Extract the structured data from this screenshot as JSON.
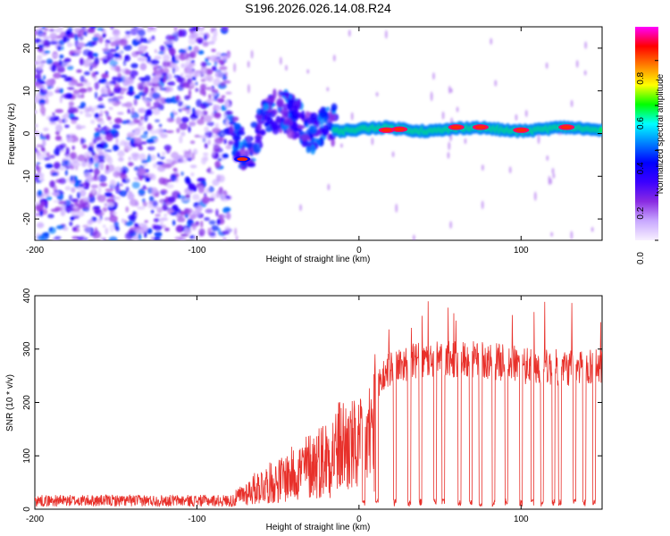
{
  "title": "S196.2026.026.14.08.R24",
  "chart_data": [
    {
      "type": "heatmap",
      "title": "S196.2026.026.14.08.R24",
      "xlabel": "Height of straight line (km)",
      "ylabel": "Frequency (Hz)",
      "xlim": [
        -200,
        150
      ],
      "ylim": [
        -25,
        25
      ],
      "xticks": [
        -200,
        -100,
        0,
        100
      ],
      "xtick_labels": [
        "-200",
        "-100",
        "0",
        "100"
      ],
      "yticks": [
        -20,
        -10,
        0,
        10,
        20
      ],
      "ytick_labels": [
        "-20",
        "-10",
        "0",
        "10",
        "20"
      ],
      "colorbar": {
        "label": "Normalized spectral amplitude",
        "range": [
          0,
          0.95
        ],
        "ticks": [
          0.0,
          0.2,
          0.4,
          0.6,
          0.8
        ],
        "tick_labels": [
          "0.0",
          "0.2",
          "0.4",
          "0.6",
          "0.8"
        ],
        "colormap": [
          "#f8f0ff",
          "#c8a8ff",
          "#8a2be2",
          "#3b00ff",
          "#0000ff",
          "#0080ff",
          "#00ffff",
          "#00ff00",
          "#ffff00",
          "#ff8000",
          "#ff0000",
          "#ff00ff"
        ]
      },
      "regions": [
        {
          "name": "noise",
          "x_range": [
            -200,
            -80
          ],
          "frequency_range": [
            -25,
            25
          ],
          "amplitude": 0.1
        },
        {
          "name": "transition",
          "x_range": [
            -80,
            -15
          ],
          "frequency_center_path": [
            [
              -80,
              3
            ],
            [
              -75,
              -2
            ],
            [
              -68,
              -5
            ],
            [
              -60,
              2
            ],
            [
              -50,
              6
            ],
            [
              -40,
              4
            ],
            [
              -30,
              0
            ],
            [
              -20,
              2
            ]
          ],
          "amplitude": 0.3
        },
        {
          "name": "signal-line",
          "x_range": [
            -15,
            150
          ],
          "frequency": 1.0,
          "amplitude": 0.75
        }
      ],
      "peak_points": [
        {
          "x": -72,
          "y": -6,
          "amplitude": 0.35
        },
        {
          "x": 17,
          "y": 0.8,
          "amplitude": 0.9
        },
        {
          "x": 25,
          "y": 1.0,
          "amplitude": 0.9
        },
        {
          "x": 60,
          "y": 1.5,
          "amplitude": 0.9
        },
        {
          "x": 75,
          "y": 1.5,
          "amplitude": 0.9
        },
        {
          "x": 100,
          "y": 0.8,
          "amplitude": 0.9
        },
        {
          "x": 128,
          "y": 1.5,
          "amplitude": 0.9
        }
      ]
    },
    {
      "type": "line",
      "xlabel": "Height of straight line (km)",
      "ylabel": "SNR (10 * v/v)",
      "xlim": [
        -200,
        150
      ],
      "ylim": [
        0,
        400
      ],
      "xticks": [
        -200,
        -100,
        0,
        100
      ],
      "xtick_labels": [
        "-200",
        "-100",
        "0",
        "100"
      ],
      "yticks": [
        0,
        100,
        200,
        300,
        400
      ],
      "ytick_labels": [
        "0",
        "100",
        "200",
        "300",
        "400"
      ],
      "series": [
        {
          "name": "SNR",
          "color": "#e8302a",
          "baseline_profile": [
            [
              -200,
              15
            ],
            [
              -80,
              18
            ],
            [
              -70,
              40
            ],
            [
              -60,
              60
            ],
            [
              -50,
              70
            ],
            [
              -40,
              90
            ],
            [
              -30,
              110
            ],
            [
              -20,
              130
            ],
            [
              -10,
              160
            ],
            [
              0,
              150
            ],
            [
              5,
              170
            ],
            [
              10,
              220
            ],
            [
              15,
              250
            ],
            [
              20,
              265
            ],
            [
              30,
              275
            ],
            [
              50,
              280
            ],
            [
              70,
              280
            ],
            [
              90,
              275
            ],
            [
              110,
              265
            ],
            [
              130,
              265
            ],
            [
              150,
              270
            ]
          ],
          "dropouts_x": [
            3,
            11,
            22,
            31,
            38,
            47,
            52,
            62,
            69,
            75,
            83,
            91,
            100,
            107,
            113,
            120,
            124,
            133,
            139,
            145
          ],
          "peak_level": 390
        }
      ]
    }
  ]
}
